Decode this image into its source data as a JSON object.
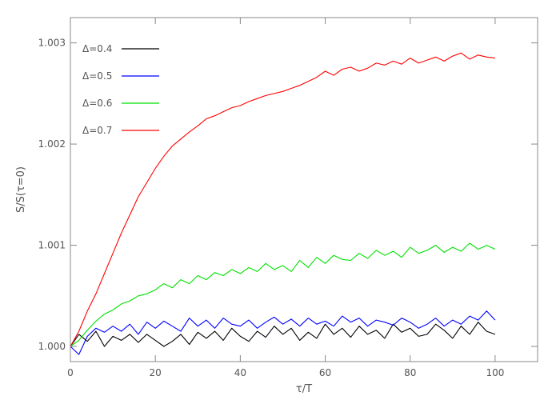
{
  "chart_data": {
    "type": "line",
    "xlabel": "τ/T",
    "ylabel": "S/S(τ=0)",
    "xlim": [
      0,
      110
    ],
    "ylim": [
      0.99985,
      1.00325
    ],
    "x_ticks": [
      0,
      20,
      40,
      60,
      80,
      100
    ],
    "x_tick_labels": [
      "0",
      "20",
      "40",
      "60",
      "80",
      "100"
    ],
    "y_ticks": [
      1.0,
      1.001,
      1.002,
      1.003
    ],
    "y_tick_labels": [
      "1.000",
      "1.001",
      "1.002",
      "1.003"
    ],
    "legend_position": "top-left",
    "grid": false,
    "series": [
      {
        "name": "Δ=0.4",
        "color": "#000000",
        "x": [
          0,
          2,
          4,
          6,
          8,
          10,
          12,
          14,
          16,
          18,
          20,
          22,
          24,
          26,
          28,
          30,
          32,
          34,
          36,
          38,
          40,
          42,
          44,
          46,
          48,
          50,
          52,
          54,
          56,
          58,
          60,
          62,
          64,
          66,
          68,
          70,
          72,
          74,
          76,
          78,
          80,
          82,
          84,
          86,
          88,
          90,
          92,
          94,
          96,
          98,
          100
        ],
        "y": [
          1.0,
          1.00012,
          1.00005,
          1.00015,
          1.0,
          1.0001,
          1.00006,
          1.00012,
          1.00004,
          1.00012,
          1.00006,
          1.0,
          1.00005,
          1.00012,
          1.00002,
          1.00014,
          1.00008,
          1.00015,
          1.00006,
          1.00018,
          1.0001,
          1.00005,
          1.00015,
          1.00009,
          1.0002,
          1.00012,
          1.00018,
          1.00006,
          1.00014,
          1.00008,
          1.00022,
          1.00012,
          1.00018,
          1.00009,
          1.0002,
          1.00012,
          1.00016,
          1.00008,
          1.00022,
          1.00014,
          1.00018,
          1.0001,
          1.00012,
          1.00022,
          1.00016,
          1.00008,
          1.0002,
          1.00012,
          1.00024,
          1.00015,
          1.00012
        ]
      },
      {
        "name": "Δ=0.5",
        "color": "#0000ff",
        "x": [
          0,
          2,
          4,
          6,
          8,
          10,
          12,
          14,
          16,
          18,
          20,
          22,
          24,
          26,
          28,
          30,
          32,
          34,
          36,
          38,
          40,
          42,
          44,
          46,
          48,
          50,
          52,
          54,
          56,
          58,
          60,
          62,
          64,
          66,
          68,
          70,
          72,
          74,
          76,
          78,
          80,
          82,
          84,
          86,
          88,
          90,
          92,
          94,
          96,
          98,
          100
        ],
        "y": [
          1.0,
          0.99992,
          1.0001,
          1.00018,
          1.00014,
          1.0002,
          1.00015,
          1.00022,
          1.00012,
          1.00024,
          1.00018,
          1.00025,
          1.0002,
          1.00015,
          1.00028,
          1.0002,
          1.00026,
          1.00018,
          1.00028,
          1.00022,
          1.0002,
          1.00026,
          1.00018,
          1.00024,
          1.00029,
          1.00022,
          1.00027,
          1.0002,
          1.00028,
          1.00022,
          1.00025,
          1.0002,
          1.0003,
          1.00024,
          1.00028,
          1.0002,
          1.00026,
          1.00024,
          1.00021,
          1.00028,
          1.00024,
          1.00018,
          1.00022,
          1.00028,
          1.0002,
          1.00026,
          1.00022,
          1.0003,
          1.00026,
          1.00035,
          1.00026
        ]
      },
      {
        "name": "Δ=0.6",
        "color": "#00e000",
        "x": [
          0,
          2,
          4,
          6,
          8,
          10,
          12,
          14,
          16,
          18,
          20,
          22,
          24,
          26,
          28,
          30,
          32,
          34,
          36,
          38,
          40,
          42,
          44,
          46,
          48,
          50,
          52,
          54,
          56,
          58,
          60,
          62,
          64,
          66,
          68,
          70,
          72,
          74,
          76,
          78,
          80,
          82,
          84,
          86,
          88,
          90,
          92,
          94,
          96,
          98,
          100
        ],
        "y": [
          1.0,
          1.00006,
          1.00016,
          1.00025,
          1.00032,
          1.00036,
          1.00042,
          1.00045,
          1.0005,
          1.00052,
          1.00056,
          1.00062,
          1.00058,
          1.00066,
          1.00062,
          1.0007,
          1.00066,
          1.00073,
          1.0007,
          1.00076,
          1.00072,
          1.00078,
          1.00074,
          1.00082,
          1.00076,
          1.0008,
          1.00074,
          1.00085,
          1.00078,
          1.00088,
          1.00082,
          1.0009,
          1.00086,
          1.00085,
          1.00092,
          1.00087,
          1.00095,
          1.0009,
          1.00094,
          1.00088,
          1.00098,
          1.00092,
          1.00095,
          1.001,
          1.00093,
          1.00098,
          1.00094,
          1.00102,
          1.00096,
          1.001,
          1.00096
        ]
      },
      {
        "name": "Δ=0.7",
        "color": "#ff0000",
        "x": [
          0,
          2,
          4,
          6,
          8,
          10,
          12,
          14,
          16,
          18,
          20,
          22,
          24,
          26,
          28,
          30,
          32,
          34,
          36,
          38,
          40,
          42,
          44,
          46,
          48,
          50,
          52,
          54,
          56,
          58,
          60,
          62,
          64,
          66,
          68,
          70,
          72,
          74,
          76,
          78,
          80,
          82,
          84,
          86,
          88,
          90,
          92,
          94,
          96,
          98,
          100
        ],
        "y": [
          1.0,
          1.00015,
          1.00035,
          1.00052,
          1.00072,
          1.00092,
          1.00112,
          1.0013,
          1.00148,
          1.00162,
          1.00176,
          1.00188,
          1.00198,
          1.00205,
          1.00212,
          1.00218,
          1.00225,
          1.00228,
          1.00232,
          1.00236,
          1.00238,
          1.00242,
          1.00245,
          1.00248,
          1.0025,
          1.00252,
          1.00255,
          1.00258,
          1.00262,
          1.00266,
          1.00272,
          1.00268,
          1.00274,
          1.00276,
          1.00272,
          1.00275,
          1.0028,
          1.00278,
          1.00282,
          1.00279,
          1.00285,
          1.0028,
          1.00283,
          1.00286,
          1.00282,
          1.00287,
          1.0029,
          1.00284,
          1.00288,
          1.00286,
          1.00285
        ]
      }
    ]
  }
}
